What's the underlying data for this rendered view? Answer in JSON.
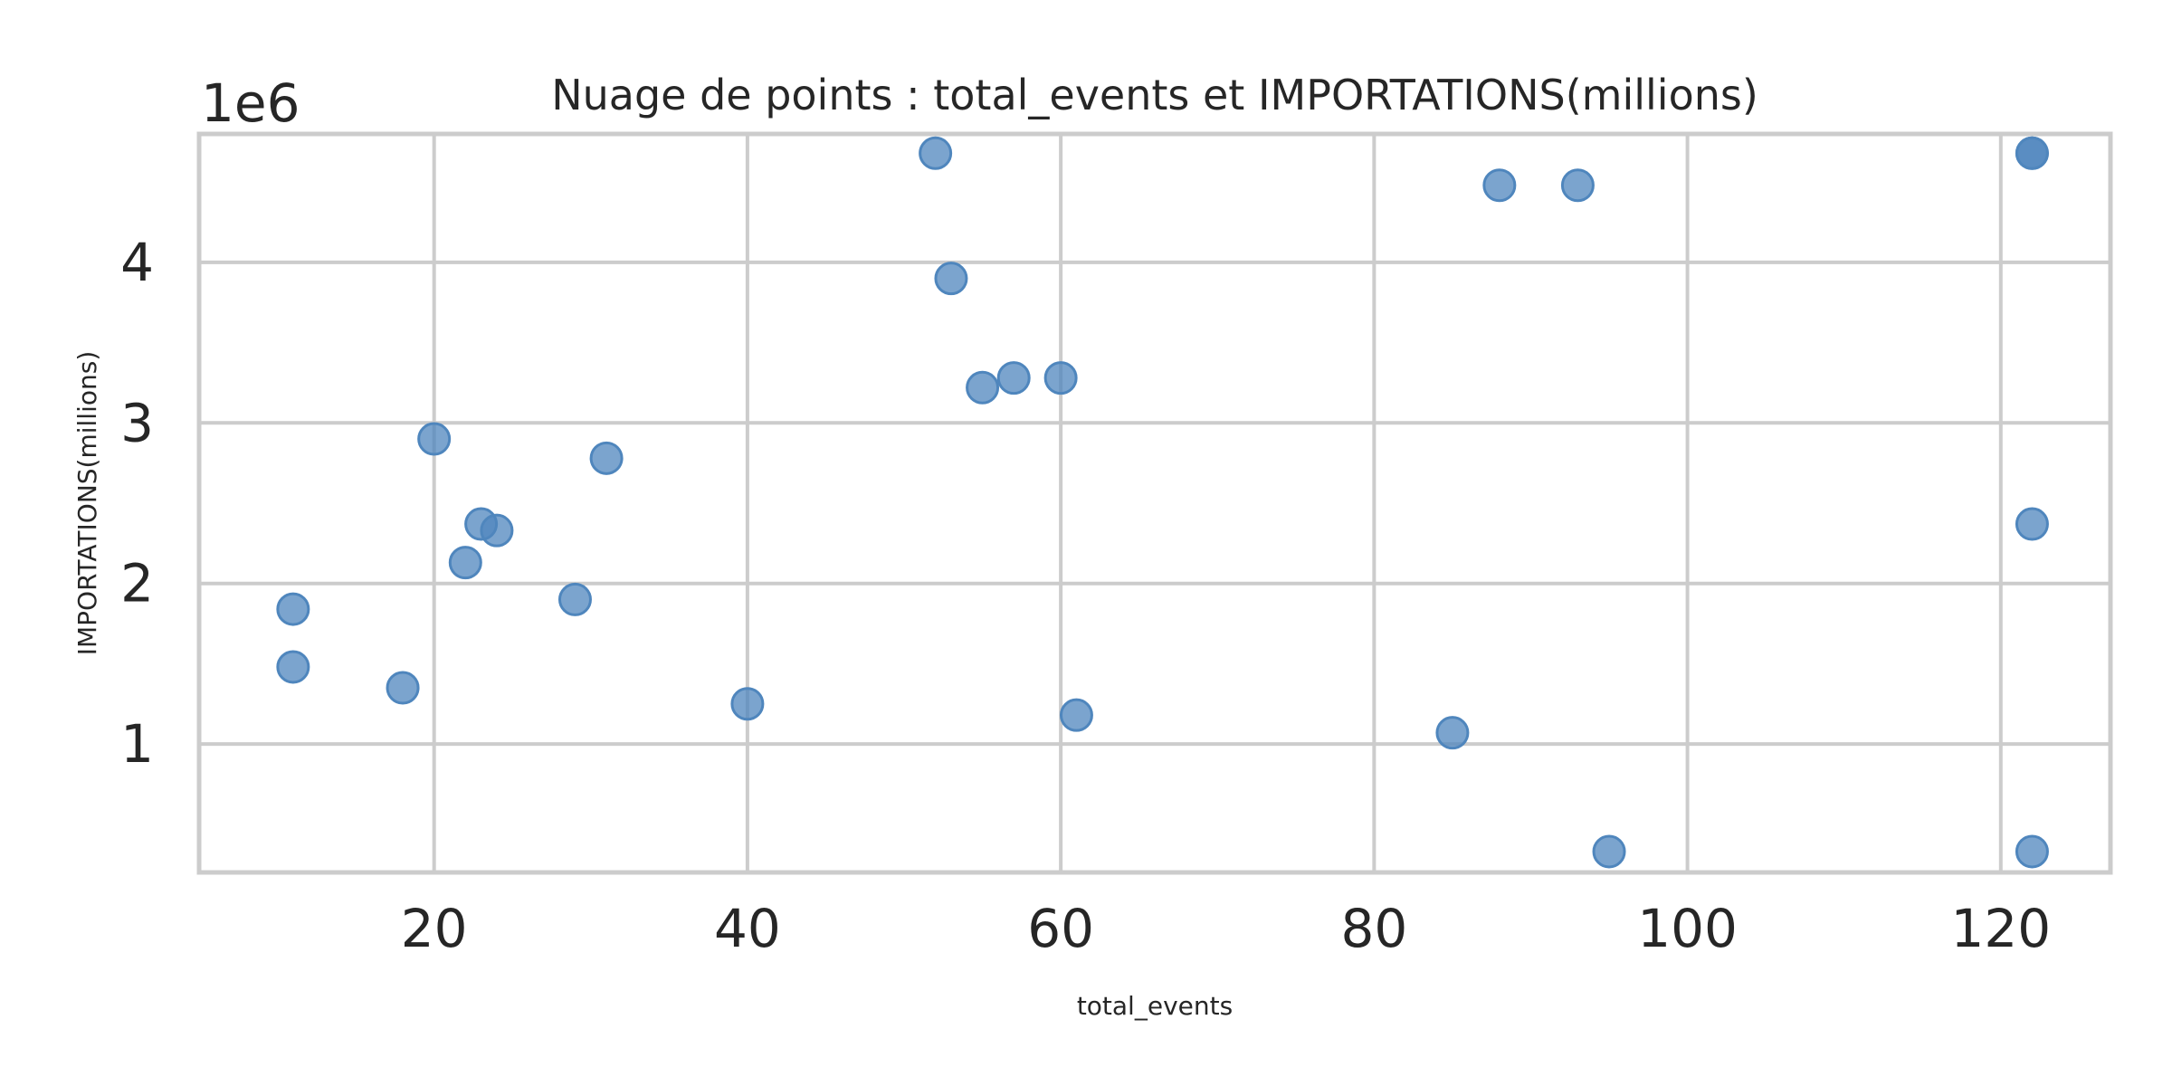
{
  "chart_data": {
    "type": "scatter",
    "title": "Nuage de points : total_events et IMPORTATIONS(millions)",
    "xlabel": "total_events",
    "ylabel": "IMPORTATIONS(millions)",
    "y_offset_label": "1e6",
    "xlim": [
      5,
      127
    ],
    "ylim": [
      0.2,
      4.8
    ],
    "x_ticks": [
      20,
      40,
      60,
      80,
      100,
      120
    ],
    "x_tick_labels": [
      "20",
      "40",
      "60",
      "80",
      "100",
      "120"
    ],
    "y_ticks": [
      1,
      2,
      3,
      4
    ],
    "y_tick_labels": [
      "1",
      "2",
      "3",
      "4"
    ],
    "grid": true,
    "legend": "none",
    "colors": {
      "point_fill": "#4f86bd",
      "point_stroke": "#4f86bd",
      "grid": "#cccccc",
      "spine": "#cccccc"
    },
    "series": [
      {
        "x": [
          11,
          11,
          18,
          20,
          22,
          23,
          24,
          29,
          31,
          40,
          52,
          53,
          55,
          57,
          60,
          61,
          85,
          88,
          93,
          95,
          122,
          122,
          122,
          122
        ],
        "y": [
          1.84,
          1.48,
          1.35,
          2.9,
          2.13,
          2.37,
          2.33,
          1.9,
          2.78,
          1.25,
          4.68,
          3.9,
          3.22,
          3.28,
          3.28,
          1.18,
          1.07,
          4.48,
          4.48,
          0.33,
          4.68,
          2.37,
          0.33,
          4.68
        ]
      }
    ]
  }
}
